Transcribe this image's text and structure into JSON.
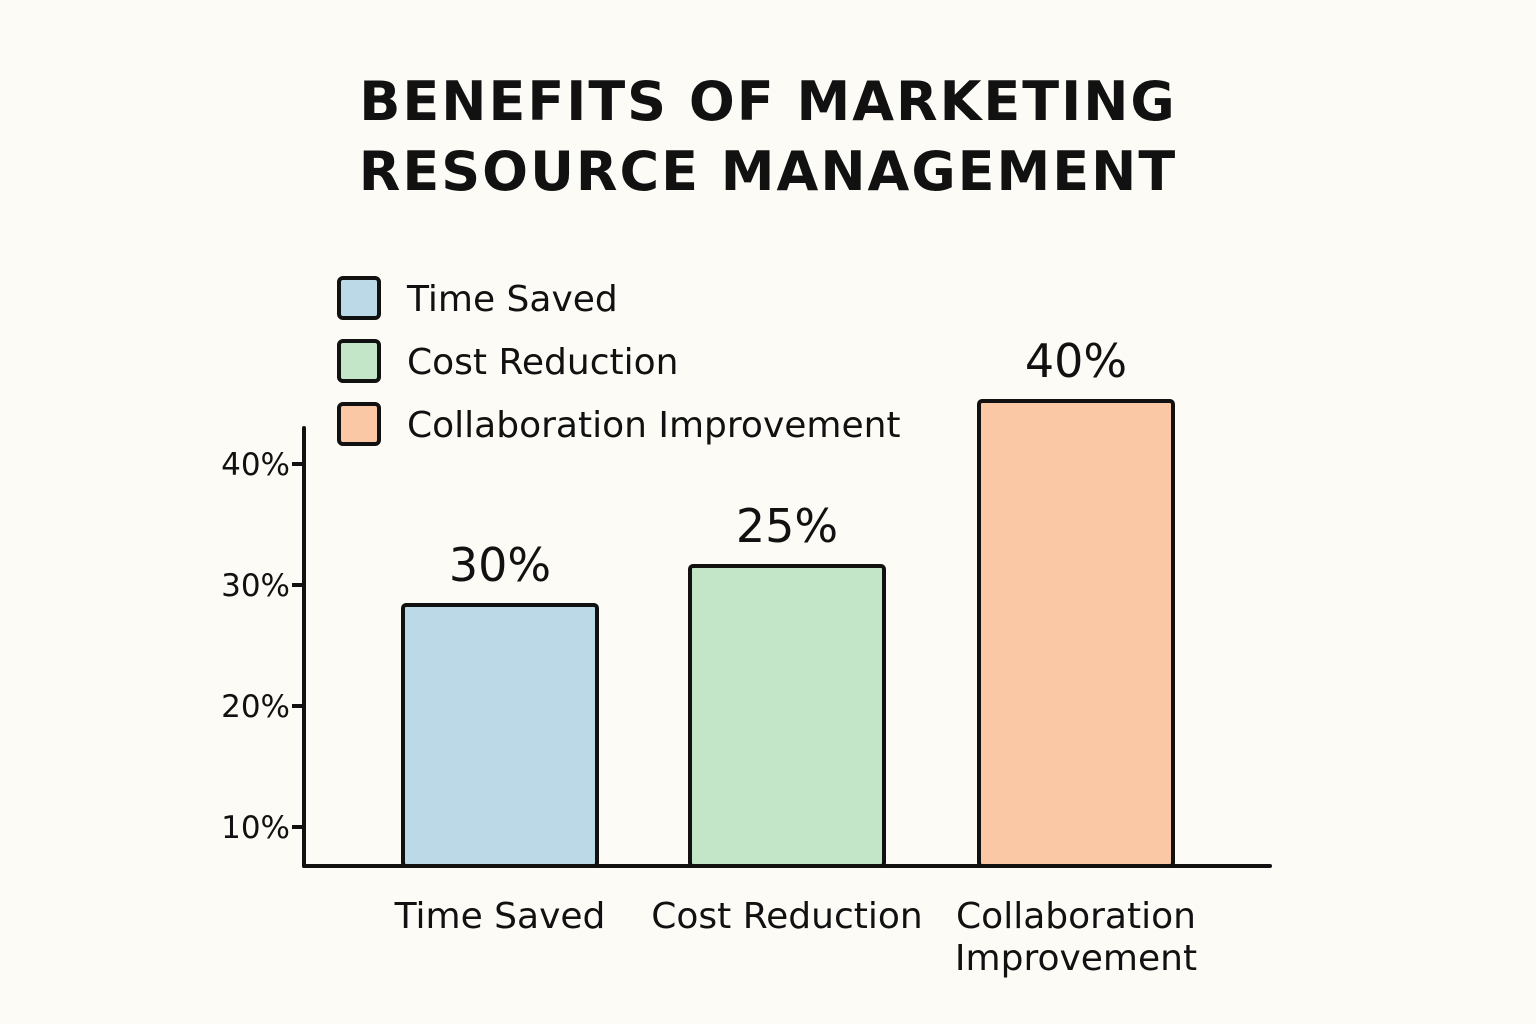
{
  "title_line1": "BENEFITS OF MARKETING",
  "title_line2": "RESOURCE MANAGEMENT",
  "chart_data": {
    "type": "bar",
    "title": "BENEFITS OF MARKETING RESOURCE MANAGEMENT",
    "categories": [
      "Time Saved",
      "Cost Reduction",
      "Collaboration Improvement"
    ],
    "category_label_lines": [
      [
        "Time Saved"
      ],
      [
        "Cost Reduction"
      ],
      [
        "Collaboration",
        "Improvement"
      ]
    ],
    "values": [
      30,
      25,
      40
    ],
    "value_labels": [
      "30%",
      "25%",
      "40%"
    ],
    "colors": [
      "#bcd9e8",
      "#c3e6c8",
      "#fbc8a6"
    ],
    "yticks": [
      10,
      20,
      30,
      40
    ],
    "ytick_labels": [
      "10%",
      "20%",
      "30%",
      "40%"
    ],
    "grid": false,
    "legend": {
      "position": "top-left",
      "entries": [
        "Time Saved",
        "Cost Reduction",
        "Collaboration Improvement"
      ]
    }
  }
}
